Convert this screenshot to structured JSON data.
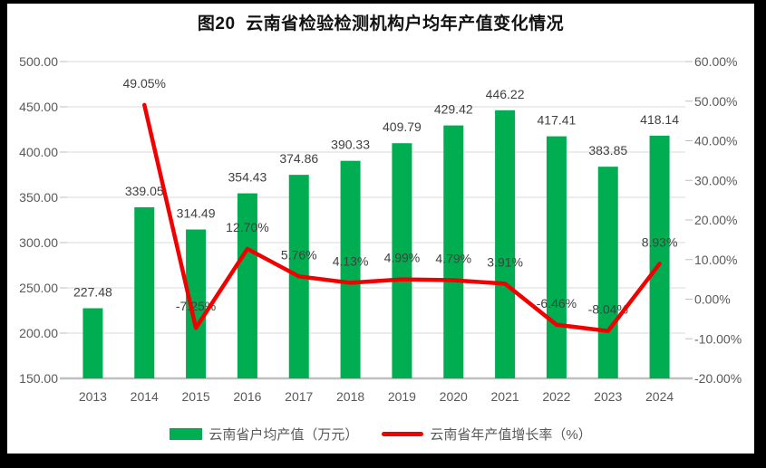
{
  "chart_data": {
    "type": "combo-bar-line",
    "title": "图20  云南省检验检测机构户均年产值变化情况",
    "categories": [
      "2013",
      "2014",
      "2015",
      "2016",
      "2017",
      "2018",
      "2019",
      "2020",
      "2021",
      "2022",
      "2023",
      "2024"
    ],
    "series": [
      {
        "name": "云南省户均产值（万元）",
        "type": "bar",
        "axis": "left",
        "color": "#00AD50",
        "values": [
          227.48,
          339.05,
          314.49,
          354.43,
          374.86,
          390.33,
          409.79,
          429.42,
          446.22,
          417.41,
          383.85,
          418.14
        ]
      },
      {
        "name": "云南省年产值增长率（%）",
        "type": "line",
        "axis": "right",
        "color": "#F20000",
        "values": [
          null,
          49.05,
          -7.25,
          12.7,
          5.76,
          4.13,
          4.99,
          4.79,
          3.91,
          -6.46,
          -8.04,
          8.93
        ]
      }
    ],
    "left_axis": {
      "min": 150,
      "max": 500,
      "step": 50,
      "tick_labels": [
        "150.00",
        "200.00",
        "250.00",
        "300.00",
        "350.00",
        "400.00",
        "450.00",
        "500.00"
      ]
    },
    "right_axis": {
      "min": -20,
      "max": 60,
      "step": 10,
      "tick_labels": [
        "-20.00%",
        "-10.00%",
        "0.00%",
        "10.00%",
        "20.00%",
        "30.00%",
        "40.00%",
        "50.00%",
        "60.00%"
      ]
    },
    "grid": true,
    "data_labels": true,
    "legend_position": "bottom"
  },
  "legend": {
    "items": [
      {
        "label": "云南省户均产值（万元）",
        "swatch": "bar",
        "color": "#00AD50"
      },
      {
        "label": "云南省年产值增长率（%）",
        "swatch": "line",
        "color": "#F20000"
      }
    ]
  },
  "styles": {
    "frame_background": "#000000",
    "canvas_background": "#FFFFFF",
    "gridline_color": "#D9D9D9",
    "axis_line_color": "#BFBFBF",
    "tick_label_color": "#595959",
    "data_label_color": "#404040",
    "title_color": "#121212",
    "legend_text_color": "#595959"
  }
}
